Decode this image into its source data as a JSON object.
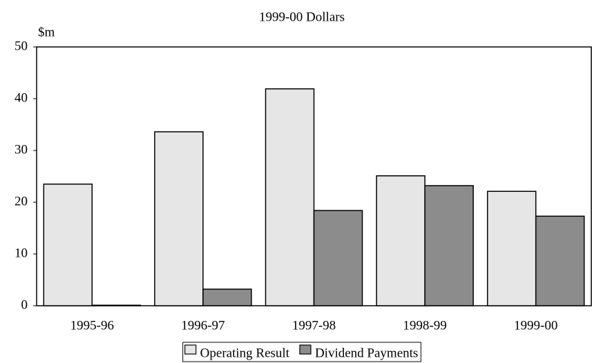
{
  "chart_data": {
    "type": "bar",
    "title": "1999-00 Dollars",
    "y_label": "$m",
    "categories": [
      "1995-96",
      "1996-97",
      "1997-98",
      "1998-99",
      "1999-00"
    ],
    "series": [
      {
        "name": "Operating Result",
        "color": "#e6e6e6",
        "values": [
          23.5,
          33.6,
          41.9,
          25.1,
          22.1
        ]
      },
      {
        "name": "Dividend Payments",
        "color": "#8c8c8c",
        "values": [
          0.1,
          3.2,
          18.4,
          23.2,
          17.3
        ]
      }
    ],
    "ylim": [
      0,
      50
    ],
    "yticks": [
      0,
      10,
      20,
      30,
      40,
      50
    ],
    "legend": "bottom"
  }
}
